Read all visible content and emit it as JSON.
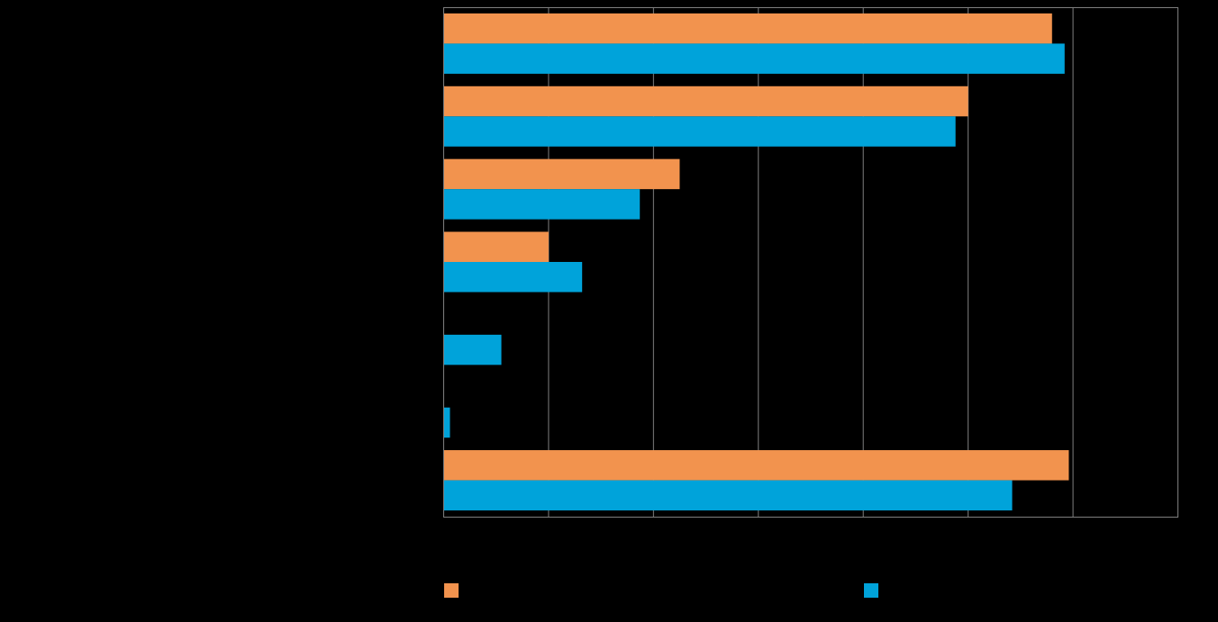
{
  "chart_data": {
    "type": "bar",
    "orientation": "horizontal",
    "categories": [
      "",
      "",
      "",
      "",
      "",
      "",
      ""
    ],
    "series": [
      {
        "values": [
          58,
          50,
          22.5,
          10,
          0,
          0,
          59.6
        ]
      },
      {
        "values": [
          59.2,
          48.8,
          18.7,
          13.2,
          5.5,
          0.6,
          54.2
        ]
      }
    ],
    "xlim": [
      0,
      70
    ],
    "grid": true,
    "legend_position": "bottom",
    "colors": [
      "#F2934E",
      "#00A3DA"
    ]
  }
}
